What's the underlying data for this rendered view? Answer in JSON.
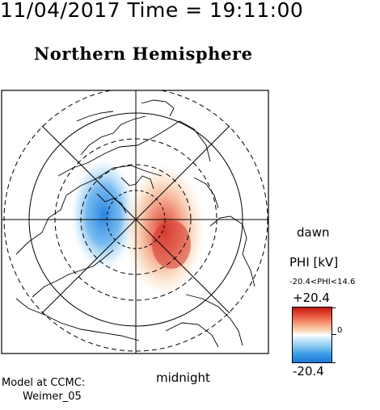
{
  "timestamp": "11/04/2017 Time = 19:11:00",
  "title": "Northern Hemisphere",
  "labels": {
    "dawn": "dawn",
    "midnight": "midnight"
  },
  "colorbar": {
    "title": "PHI [kV]",
    "range_text": "-20.4<PHI<14.6",
    "max_label": "+20.4",
    "zero_label": "0",
    "min_label": "-20.4",
    "positive_color": "#d83a2a",
    "negative_color": "#2a86e0"
  },
  "credit": {
    "line1": "Model at CCMC:",
    "line2": "Weimer_05"
  }
}
